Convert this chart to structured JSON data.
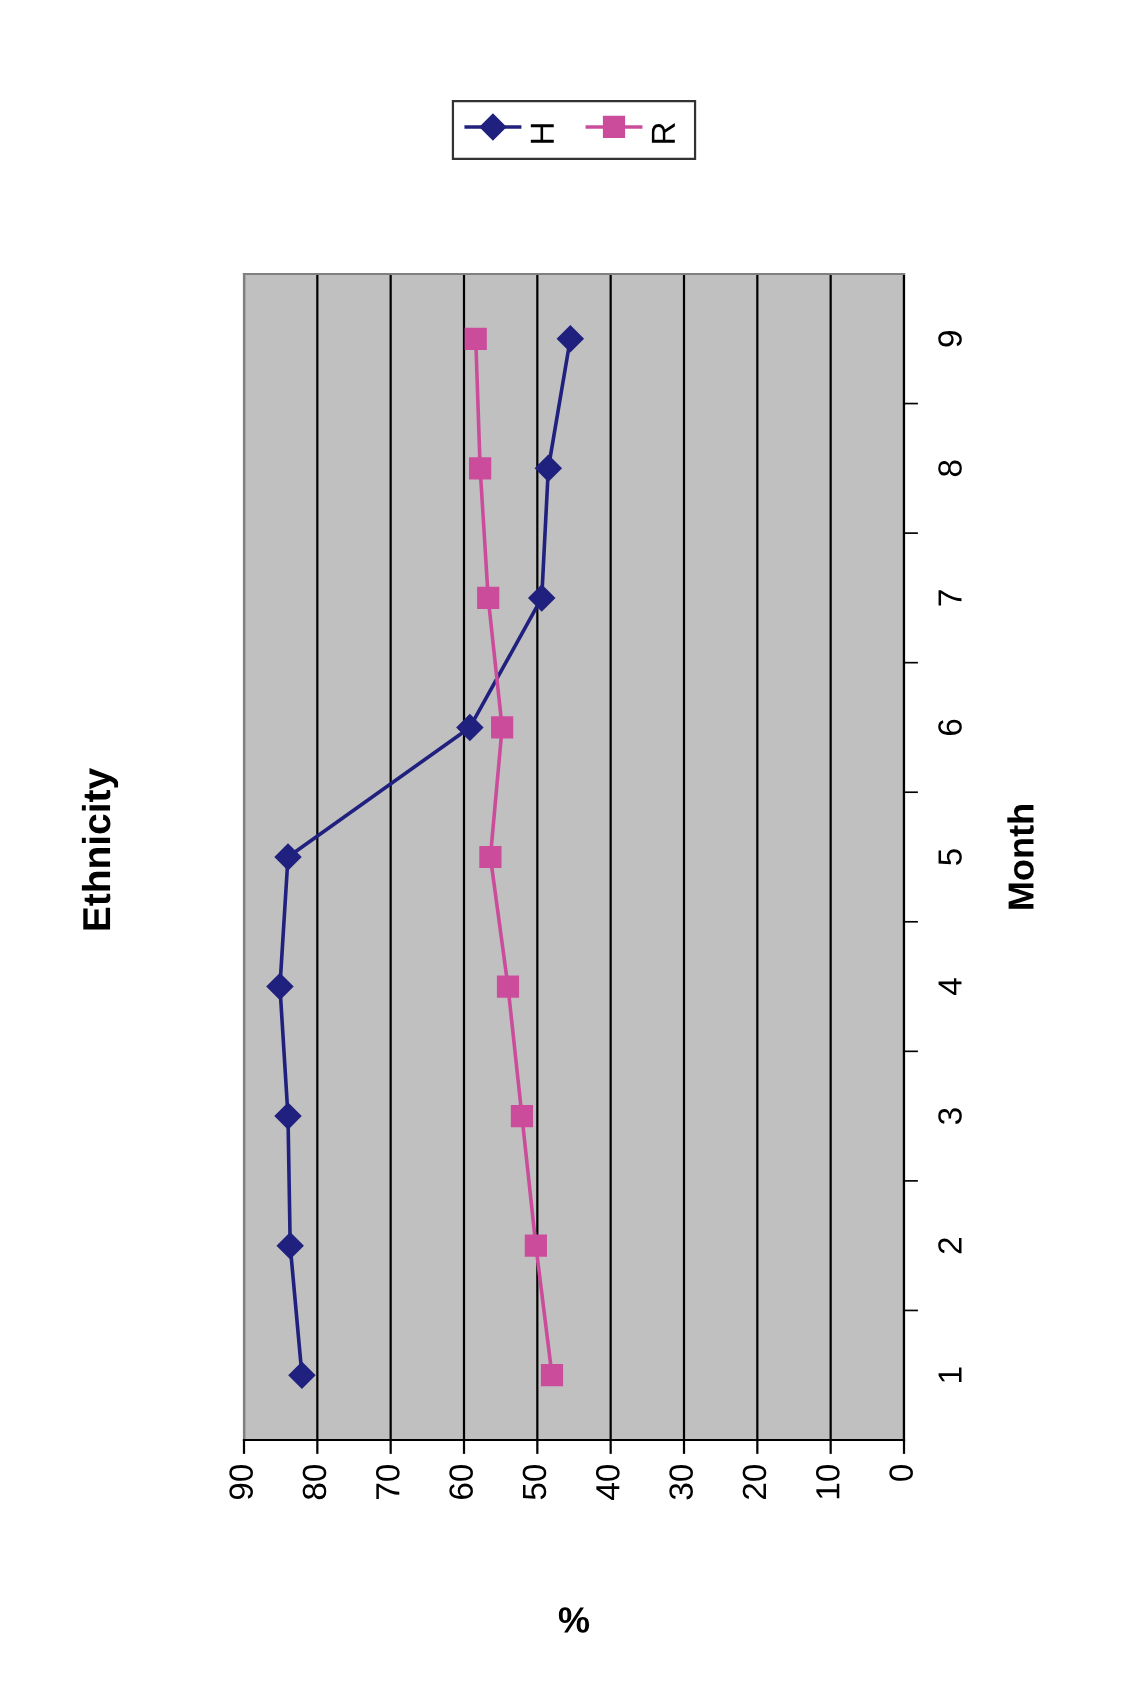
{
  "chart_data": {
    "type": "line",
    "title": "Ethnicity",
    "xlabel": "%",
    "ylabel": "Month",
    "series": [
      {
        "name": "H",
        "color": "#20207f",
        "marker": "diamond",
        "x": [
          82.1,
          83.7,
          84,
          85.1,
          84,
          59.2,
          49.4,
          48.5,
          45.5
        ],
        "values": [
          1,
          2,
          3,
          4,
          5,
          6,
          7,
          8,
          9
        ]
      },
      {
        "name": "R",
        "color": "#cc4c9c",
        "marker": "square",
        "x": [
          48,
          50.2,
          52.1,
          54,
          56.4,
          54.8,
          56.7,
          57.8,
          58.4
        ],
        "values": [
          1,
          2,
          3,
          4,
          5,
          6,
          7,
          8,
          9
        ]
      }
    ],
    "xlim": [
      90,
      0
    ],
    "xticks": [
      90,
      80,
      70,
      60,
      50,
      40,
      30,
      20,
      10,
      0
    ],
    "ylim": [
      0.5,
      9.5
    ],
    "yticks": [
      1,
      2,
      3,
      4,
      5,
      6,
      7,
      8,
      9
    ],
    "grid": "x",
    "legend": "top right",
    "line_style": "solid"
  }
}
